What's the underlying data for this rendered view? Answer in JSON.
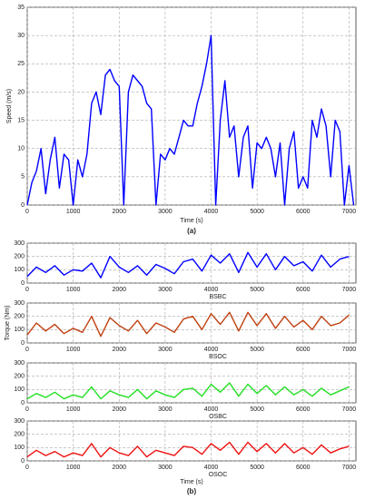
{
  "captions": [
    "(a)",
    "(b)"
  ],
  "chart_data": [
    {
      "type": "line",
      "ylabel": "Speed (m/s)",
      "xlabel": "Time (s)",
      "color": "#0000ff",
      "x": [
        0,
        100,
        200,
        300,
        400,
        500,
        600,
        700,
        800,
        900,
        1000,
        1100,
        1200,
        1300,
        1400,
        1500,
        1600,
        1700,
        1800,
        1900,
        2000,
        2100,
        2200,
        2300,
        2400,
        2500,
        2600,
        2700,
        2800,
        2900,
        3000,
        3100,
        3200,
        3300,
        3400,
        3500,
        3600,
        3700,
        3800,
        3900,
        4000,
        4100,
        4200,
        4300,
        4400,
        4500,
        4600,
        4700,
        4800,
        4900,
        5000,
        5100,
        5200,
        5300,
        5400,
        5500,
        5600,
        5700,
        5800,
        5900,
        6000,
        6100,
        6200,
        6300,
        6400,
        6500,
        6600,
        6700,
        6800,
        6900,
        7000,
        7100
      ],
      "values": [
        0,
        4,
        6,
        10,
        2,
        8,
        12,
        3,
        9,
        8,
        0,
        8,
        5,
        9,
        18,
        20,
        16,
        23,
        24,
        22,
        21,
        0,
        20,
        23,
        22,
        21,
        18,
        17,
        0,
        9,
        8,
        10,
        9,
        12,
        15,
        14,
        14,
        18,
        21,
        25,
        30,
        0,
        15,
        22,
        12,
        14,
        5,
        12,
        14,
        3,
        11,
        10,
        12,
        10,
        5,
        11,
        0,
        10,
        13,
        3,
        5,
        3,
        15,
        12,
        17,
        14,
        5,
        15,
        13,
        0,
        7,
        0
      ],
      "xlim": [
        0,
        7150
      ],
      "xticks": [
        0,
        1000,
        2000,
        3000,
        4000,
        5000,
        6000,
        7000
      ],
      "ylim": [
        0,
        35
      ],
      "yticks": [
        0,
        5,
        10,
        15,
        20,
        25,
        30,
        35
      ],
      "grid": true
    },
    {
      "type": "line",
      "label": "BSBC",
      "color": "#0000ff",
      "x": [
        0,
        200,
        400,
        600,
        800,
        1000,
        1200,
        1400,
        1600,
        1800,
        2000,
        2200,
        2400,
        2600,
        2800,
        3000,
        3200,
        3400,
        3600,
        3800,
        4000,
        4200,
        4400,
        4600,
        4800,
        5000,
        5200,
        5400,
        5600,
        5800,
        6000,
        6200,
        6400,
        6600,
        6800,
        7000
      ],
      "values": [
        50,
        120,
        80,
        130,
        60,
        100,
        90,
        150,
        40,
        200,
        120,
        80,
        130,
        60,
        140,
        110,
        70,
        160,
        180,
        90,
        210,
        150,
        220,
        80,
        230,
        120,
        220,
        100,
        200,
        130,
        160,
        90,
        210,
        120,
        180,
        200
      ],
      "xlim": [
        0,
        7150
      ],
      "xticks": [
        0,
        1000,
        2000,
        3000,
        4000,
        5000,
        6000,
        7000
      ],
      "ylim": [
        0,
        300
      ],
      "yticks": [
        0,
        100,
        200,
        300
      ],
      "grid": true
    },
    {
      "type": "line",
      "label": "BSOC",
      "ylabel": "Torque (Nm)",
      "color": "#c04010",
      "x": [
        0,
        200,
        400,
        600,
        800,
        1000,
        1200,
        1400,
        1600,
        1800,
        2000,
        2200,
        2400,
        2600,
        2800,
        3000,
        3200,
        3400,
        3600,
        3800,
        4000,
        4200,
        4400,
        4600,
        4800,
        5000,
        5200,
        5400,
        5600,
        5800,
        6000,
        6200,
        6400,
        6600,
        6800,
        7000
      ],
      "values": [
        60,
        150,
        90,
        140,
        70,
        110,
        80,
        200,
        50,
        190,
        130,
        90,
        170,
        70,
        150,
        120,
        80,
        180,
        200,
        100,
        220,
        140,
        230,
        90,
        230,
        130,
        220,
        110,
        200,
        120,
        170,
        100,
        200,
        130,
        150,
        210
      ],
      "xlim": [
        0,
        7150
      ],
      "xticks": [
        0,
        1000,
        2000,
        3000,
        4000,
        5000,
        6000,
        7000
      ],
      "ylim": [
        0,
        300
      ],
      "yticks": [
        0,
        100,
        200,
        300
      ],
      "grid": true
    },
    {
      "type": "line",
      "label": "OSBC",
      "color": "#22e022",
      "x": [
        0,
        200,
        400,
        600,
        800,
        1000,
        1200,
        1400,
        1600,
        1800,
        2000,
        2200,
        2400,
        2600,
        2800,
        3000,
        3200,
        3400,
        3600,
        3800,
        4000,
        4200,
        4400,
        4600,
        4800,
        5000,
        5200,
        5400,
        5600,
        5800,
        6000,
        6200,
        6400,
        6600,
        6800,
        7000
      ],
      "values": [
        30,
        70,
        40,
        80,
        30,
        60,
        40,
        120,
        30,
        90,
        60,
        40,
        100,
        30,
        90,
        60,
        40,
        100,
        110,
        50,
        140,
        80,
        150,
        50,
        140,
        70,
        130,
        60,
        120,
        60,
        100,
        50,
        110,
        60,
        90,
        120
      ],
      "xlim": [
        0,
        7150
      ],
      "xticks": [
        0,
        1000,
        2000,
        3000,
        4000,
        5000,
        6000,
        7000
      ],
      "ylim": [
        0,
        300
      ],
      "yticks": [
        0,
        100,
        200,
        300
      ],
      "grid": true
    },
    {
      "type": "line",
      "label": "OSOC",
      "xlabel": "Time (s)",
      "color": "#ee1111",
      "x": [
        0,
        200,
        400,
        600,
        800,
        1000,
        1200,
        1400,
        1600,
        1800,
        2000,
        2200,
        2400,
        2600,
        2800,
        3000,
        3200,
        3400,
        3600,
        3800,
        4000,
        4200,
        4400,
        4600,
        4800,
        5000,
        5200,
        5400,
        5600,
        5800,
        6000,
        6200,
        6400,
        6600,
        6800,
        7000
      ],
      "values": [
        30,
        80,
        40,
        70,
        30,
        60,
        40,
        130,
        30,
        100,
        60,
        40,
        110,
        30,
        80,
        60,
        40,
        110,
        100,
        50,
        130,
        80,
        140,
        50,
        140,
        70,
        130,
        60,
        130,
        60,
        100,
        50,
        120,
        60,
        90,
        110
      ],
      "xlim": [
        0,
        7150
      ],
      "xticks": [
        0,
        1000,
        2000,
        3000,
        4000,
        5000,
        6000,
        7000
      ],
      "ylim": [
        0,
        300
      ],
      "yticks": [
        0,
        100,
        200,
        300
      ],
      "grid": true
    }
  ]
}
